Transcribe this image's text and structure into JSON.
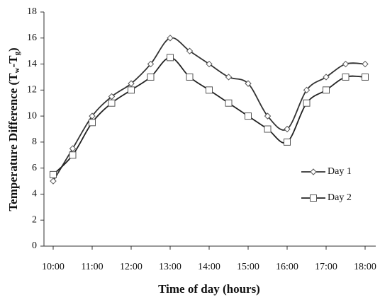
{
  "chart_data": {
    "type": "line",
    "categories": [
      "10:00",
      null,
      "11:00",
      null,
      "12:00",
      null,
      "13:00",
      null,
      "14:00",
      null,
      "15:00",
      null,
      "16:00",
      null,
      "17:00",
      null,
      "18:00"
    ],
    "series": [
      {
        "name": "Day 1",
        "color": "#333333",
        "marker": "diamond",
        "values": [
          5,
          7.5,
          10,
          11.5,
          12.5,
          14,
          16,
          15,
          14,
          13,
          12.5,
          10,
          9,
          12,
          13,
          14,
          14
        ]
      },
      {
        "name": "Day 2",
        "color": "#222222",
        "marker": "square",
        "values": [
          5.5,
          7,
          9.5,
          11,
          12,
          13,
          14.5,
          13,
          12,
          11,
          10,
          9,
          8,
          11,
          12,
          13,
          13
        ]
      }
    ],
    "ylim": [
      0,
      18
    ],
    "yticks": [
      0,
      2,
      4,
      6,
      8,
      10,
      12,
      14,
      16,
      18
    ],
    "xlabel": "Time of day (hours)",
    "ylabel_parts": [
      "Temperature Difference (T",
      "w",
      "-T",
      "g",
      ")"
    ],
    "legend": "right",
    "grid": false
  }
}
